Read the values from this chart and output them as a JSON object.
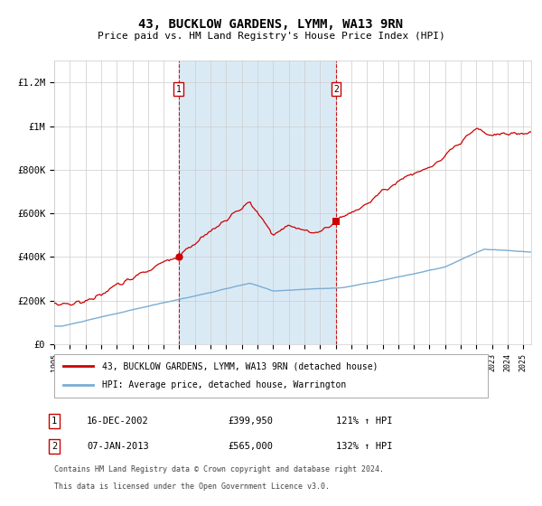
{
  "title": "43, BUCKLOW GARDENS, LYMM, WA13 9RN",
  "subtitle": "Price paid vs. HM Land Registry's House Price Index (HPI)",
  "legend_line1": "43, BUCKLOW GARDENS, LYMM, WA13 9RN (detached house)",
  "legend_line2": "HPI: Average price, detached house, Warrington",
  "annotation1_label": "1",
  "annotation1_date": "16-DEC-2002",
  "annotation1_price": "£399,950",
  "annotation1_hpi": "121% ↑ HPI",
  "annotation2_label": "2",
  "annotation2_date": "07-JAN-2013",
  "annotation2_price": "£565,000",
  "annotation2_hpi": "132% ↑ HPI",
  "footer_line1": "Contains HM Land Registry data © Crown copyright and database right 2024.",
  "footer_line2": "This data is licensed under the Open Government Licence v3.0.",
  "red_color": "#cc0000",
  "blue_color": "#7aadd4",
  "shade_color": "#daeaf5",
  "background_color": "#ffffff",
  "grid_color": "#cccccc",
  "title_fontsize": 10,
  "subtitle_fontsize": 8,
  "ylim": [
    0,
    1300000
  ],
  "yticks": [
    0,
    200000,
    400000,
    600000,
    800000,
    1000000,
    1200000
  ],
  "ytick_labels": [
    "£0",
    "£200K",
    "£400K",
    "£600K",
    "£800K",
    "£1M",
    "£1.2M"
  ],
  "sale1_x": 2002.96,
  "sale1_y": 399950,
  "sale2_x": 2013.03,
  "sale2_y": 565000,
  "shade_x1": 2002.96,
  "shade_x2": 2013.03,
  "xmin": 1995.0,
  "xmax": 2025.5
}
